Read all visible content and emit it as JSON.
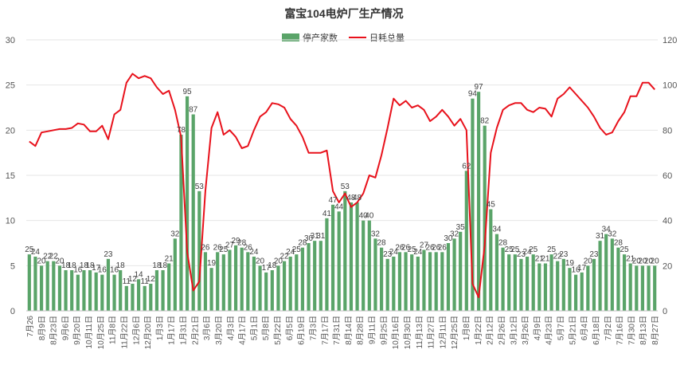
{
  "chart_data": {
    "type": "bar+line",
    "title": "富宝104电炉厂生产情况",
    "legend": [
      {
        "name": "停产家数",
        "color": "#5aa469",
        "kind": "bar"
      },
      {
        "name": "日耗总量",
        "color": "#e8111b",
        "kind": "line"
      }
    ],
    "legend_position": "top-center",
    "y_left": {
      "min": 0,
      "max": 30,
      "ticks": [
        "0",
        "5",
        "10",
        "15",
        "20",
        "25",
        "30"
      ]
    },
    "y_right": {
      "min": 0,
      "max": 120,
      "ticks": [
        "0",
        "20",
        "40",
        "60",
        "80",
        "100",
        "120"
      ]
    },
    "x_tick_labels": [
      "7月26",
      "8月9日",
      "8月23日",
      "9月6日",
      "9月20日",
      "10月11日",
      "10月25日",
      "11月8日",
      "11月22日",
      "12月6日",
      "12月20日",
      "1月3日",
      "1月17日",
      "1月31日",
      "2月21日",
      "3月6日",
      "3月20日",
      "4月3日",
      "4月17日",
      "5月1日",
      "5月8日",
      "5月22日",
      "6月5日",
      "6月19日",
      "7月3日",
      "7月17日",
      "7月31日",
      "8月14日",
      "8月28日",
      "9月11日",
      "9月25日",
      "10月16日",
      "10月30日",
      "11月13日",
      "11月27日",
      "12月11日",
      "12月25日",
      "1月8日",
      "1月22日",
      "2月12日",
      "2月26日",
      "3月12日",
      "3月26日",
      "4月9日",
      "4月23日",
      "5月7日",
      "5月21日",
      "6月4日",
      "6月18日",
      "7月2日",
      "7月16日",
      "7月30日",
      "8月13日",
      "8月27日"
    ],
    "bars": [
      25,
      24,
      20,
      22,
      22,
      20,
      18,
      18,
      16,
      18,
      18,
      17,
      16,
      23,
      16,
      18,
      11,
      12,
      14,
      11,
      12,
      18,
      18,
      21,
      32,
      78,
      95,
      87,
      53,
      26,
      19,
      26,
      25,
      27,
      29,
      28,
      26,
      24,
      20,
      17,
      18,
      20,
      22,
      24,
      25,
      28,
      30,
      31,
      31,
      41,
      47,
      44,
      53,
      48,
      48,
      40,
      40,
      32,
      28,
      23,
      24,
      26,
      26,
      25,
      24,
      27,
      26,
      26,
      26,
      30,
      32,
      35,
      62,
      94,
      97,
      82,
      45,
      34,
      28,
      25,
      25,
      23,
      24,
      25,
      21,
      21,
      25,
      22,
      23,
      19,
      16,
      17,
      20,
      23,
      31,
      34,
      32,
      28,
      25,
      21,
      20,
      20,
      20,
      20
    ],
    "bar_labels": [
      "25",
      "24",
      "20",
      "22",
      "22",
      "20",
      "18",
      "18",
      "16",
      "18",
      "18",
      "17",
      "16",
      "23",
      "16",
      "18",
      "11",
      "12",
      "14",
      "11",
      "12",
      "18",
      "18",
      "21",
      "32",
      "78",
      "95",
      "87",
      "53",
      "26",
      "19",
      "26",
      "25",
      "27",
      "29",
      "28",
      "26",
      "24",
      "20",
      "17",
      "18",
      "20",
      "22",
      "24",
      "25",
      "28",
      "30",
      "31",
      "31",
      "41",
      "47",
      "44",
      "53",
      "48",
      "48",
      "40",
      "40",
      "32",
      "28",
      "23",
      "24",
      "26",
      "26",
      "25",
      "24",
      "27",
      "26",
      "26",
      "26",
      "30",
      "32",
      "35",
      "62",
      "94",
      "97",
      "82",
      "45",
      "34",
      "28",
      "25",
      "25",
      "23",
      "24",
      "25",
      "21",
      "21",
      "25",
      "22",
      "23",
      "19",
      "16",
      "17",
      "20",
      "23",
      "31",
      "34",
      "32",
      "28",
      "25",
      "21",
      "20",
      "20",
      "20",
      "20"
    ],
    "line": [
      75,
      73,
      79,
      79.5,
      80,
      80.5,
      80.5,
      81,
      83,
      82.5,
      79.5,
      79.5,
      82,
      76,
      87,
      89,
      101,
      105,
      103,
      104,
      103,
      99,
      96,
      97.5,
      89,
      77,
      26,
      9,
      13,
      53,
      81,
      88,
      78,
      80,
      77,
      72,
      73,
      80,
      86,
      88,
      92,
      91.5,
      90,
      85,
      82,
      77,
      70,
      70,
      70,
      71,
      53,
      48,
      52,
      46,
      48,
      52,
      60,
      59,
      69,
      81,
      94,
      91,
      93,
      90,
      91,
      89,
      84,
      86,
      89,
      86,
      82,
      85,
      80,
      12,
      6,
      29,
      70,
      81,
      89,
      91,
      92,
      92,
      89,
      88,
      90,
      89.5,
      86,
      94,
      96,
      99,
      96,
      93,
      90,
      86,
      81,
      78,
      79,
      84,
      88,
      95,
      95,
      101,
      101,
      98
    ]
  }
}
